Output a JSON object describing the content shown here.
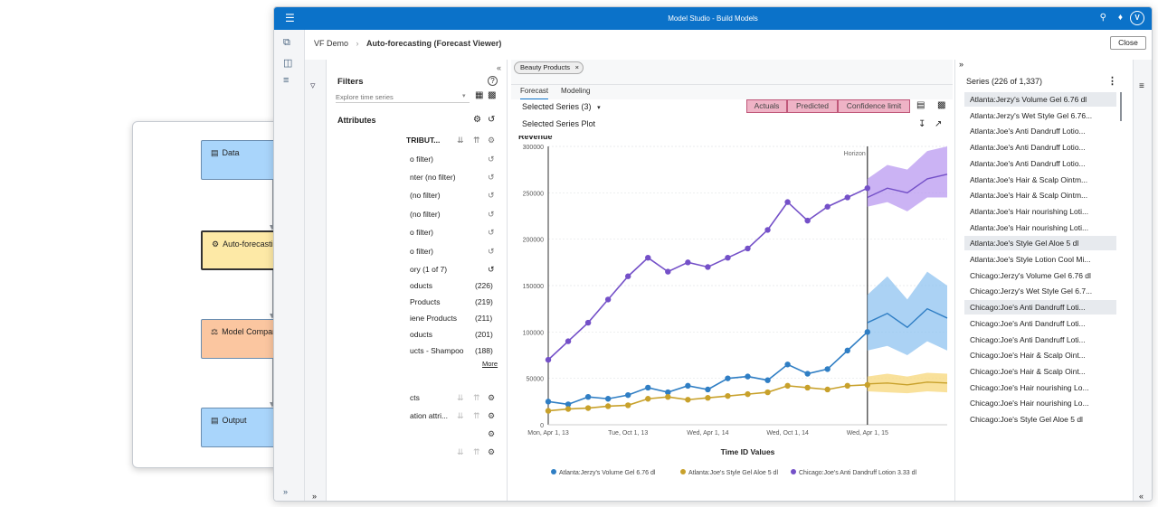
{
  "app": {
    "title": "Model Studio - Build Models",
    "avatar": "V"
  },
  "breadcrumb": {
    "project": "VF Demo",
    "page": "Auto-forecasting (Forecast Viewer)"
  },
  "close_label": "Close",
  "filters": {
    "title": "Filters",
    "search_placeholder": "Explore time series",
    "attributes_title": "Attributes",
    "rows": [
      "TRIBUT...",
      "o filter)",
      "nter (no filter)",
      "(no filter)",
      "(no filter)",
      "o filter)",
      "o filter)",
      "ory (1 of 7)"
    ],
    "products": [
      {
        "label": "oducts",
        "count": "(226)"
      },
      {
        "label": "Products",
        "count": "(219)"
      },
      {
        "label": "iene Products",
        "count": "(211)"
      },
      {
        "label": "oducts",
        "count": "(201)"
      },
      {
        "label": "ucts - Shampoo",
        "count": "(188)"
      }
    ],
    "more": "More",
    "lower_rows": [
      "cts",
      "ation attri..."
    ]
  },
  "main": {
    "chip": "Beauty Products",
    "tabs": [
      "Forecast",
      "Modeling"
    ],
    "series_dropdown": "Selected Series (3)",
    "plot_title": "Selected Series Plot",
    "legend_buttons": [
      "Actuals",
      "Predicted",
      "Confidence limit"
    ]
  },
  "series_panel": {
    "title": "Series (226 of 1,337)",
    "items": [
      "Atlanta:Jerzy's Volume Gel 6.76 dl",
      "Atlanta:Jerzy's Wet Style Gel 6.76...",
      "Atlanta:Joe's Anti Dandruff Lotio...",
      "Atlanta:Joe's Anti Dandruff Lotio...",
      "Atlanta:Joe's Anti Dandruff Lotio...",
      "Atlanta:Joe's Hair & Scalp Ointm...",
      "Atlanta:Joe's Hair & Scalp Ointm...",
      "Atlanta:Joe's Hair nourishing Loti...",
      "Atlanta:Joe's Hair nourishing Loti...",
      "Atlanta:Joe's Style Gel Aloe 5  dl",
      "Atlanta:Joe's Style Lotion Cool Mi...",
      "Chicago:Jerzy's Volume Gel 6.76 dl",
      "Chicago:Jerzy's Wet Style Gel 6.7...",
      "Chicago:Joe's Anti Dandruff Loti...",
      "Chicago:Joe's Anti Dandruff Loti...",
      "Chicago:Joe's Anti Dandruff Loti...",
      "Chicago:Joe's Hair & Scalp Oint...",
      "Chicago:Joe's Hair & Scalp Oint...",
      "Chicago:Joe's Hair nourishing Lo...",
      "Chicago:Joe's Hair nourishing Lo...",
      "Chicago:Joe's Style Gel Aloe 5  dl"
    ],
    "highlighted": [
      0,
      9,
      13
    ]
  },
  "pipeline": {
    "nodes": [
      {
        "label": "Data",
        "color": "#a9d5fb",
        "icon": "data-icon"
      },
      {
        "label": "Auto-forecasting",
        "color": "#fde9a6",
        "icon": "forecast-icon"
      },
      {
        "label": "Model Comparison",
        "color": "#fbc6a0",
        "icon": "compare-icon"
      },
      {
        "label": "Output",
        "color": "#a9d5fb",
        "icon": "output-icon"
      }
    ]
  },
  "chart_data": {
    "type": "line",
    "title": "Revenue",
    "xlabel": "Time ID Values",
    "ylabel": "",
    "x_ticks": [
      "Mon, Apr 1, 13",
      "Tue, Oct 1, 13",
      "Wed, Apr 1, 14",
      "Wed, Oct 1, 14",
      "Wed, Apr 1, 15"
    ],
    "ylim": [
      0,
      300000
    ],
    "y_ticks": [
      0,
      50000,
      100000,
      150000,
      200000,
      250000,
      300000
    ],
    "horizon_label": "Horizon",
    "horizon_x": 0.8,
    "grid": true,
    "legend_position": "bottom",
    "series": [
      {
        "name": "Atlanta:Jerzy's Volume Gel 6.76 dl",
        "color": "#2f7ec4",
        "band": "#8fc3f0",
        "x": [
          0,
          0.05,
          0.1,
          0.15,
          0.2,
          0.25,
          0.3,
          0.35,
          0.4,
          0.45,
          0.5,
          0.55,
          0.6,
          0.65,
          0.7,
          0.75,
          0.8
        ],
        "values": [
          25000,
          22000,
          30000,
          28000,
          32000,
          40000,
          35000,
          42000,
          38000,
          50000,
          52000,
          48000,
          65000,
          55000,
          60000,
          80000,
          100000
        ],
        "forecast": {
          "x": [
            0.8,
            0.85,
            0.9,
            0.95,
            1.0
          ],
          "values": [
            110000,
            120000,
            105000,
            125000,
            115000
          ],
          "lower": [
            80000,
            85000,
            75000,
            90000,
            80000
          ],
          "upper": [
            140000,
            160000,
            135000,
            165000,
            150000
          ]
        }
      },
      {
        "name": "Atlanta:Joe's Style Gel Aloe 5  dl",
        "color": "#c8a12b",
        "band": "#f7d77a",
        "x": [
          0,
          0.05,
          0.1,
          0.15,
          0.2,
          0.25,
          0.3,
          0.35,
          0.4,
          0.45,
          0.5,
          0.55,
          0.6,
          0.65,
          0.7,
          0.75,
          0.8
        ],
        "values": [
          15000,
          17000,
          18000,
          20000,
          21000,
          28000,
          30000,
          27000,
          29000,
          31000,
          33000,
          35000,
          42000,
          40000,
          38000,
          42000,
          43000
        ],
        "forecast": {
          "x": [
            0.8,
            0.85,
            0.9,
            0.95,
            1.0
          ],
          "values": [
            44000,
            45000,
            43000,
            46000,
            45000
          ],
          "lower": [
            36000,
            35000,
            34000,
            36000,
            35000
          ],
          "upper": [
            52000,
            55000,
            52000,
            56000,
            55000
          ]
        }
      },
      {
        "name": "Chicago:Joe's Anti Dandruff Lotion 3.33 dl",
        "color": "#7450c8",
        "band": "#b99af0",
        "x": [
          0,
          0.05,
          0.1,
          0.15,
          0.2,
          0.25,
          0.3,
          0.35,
          0.4,
          0.45,
          0.5,
          0.55,
          0.6,
          0.65,
          0.7,
          0.75,
          0.8
        ],
        "values": [
          70000,
          90000,
          110000,
          135000,
          160000,
          180000,
          165000,
          175000,
          170000,
          180000,
          190000,
          210000,
          240000,
          220000,
          235000,
          245000,
          255000
        ],
        "forecast": {
          "x": [
            0.8,
            0.85,
            0.9,
            0.95,
            1.0
          ],
          "values": [
            245000,
            255000,
            250000,
            265000,
            270000
          ],
          "lower": [
            235000,
            240000,
            230000,
            245000,
            245000
          ],
          "upper": [
            265000,
            280000,
            275000,
            295000,
            300000
          ]
        }
      }
    ]
  }
}
